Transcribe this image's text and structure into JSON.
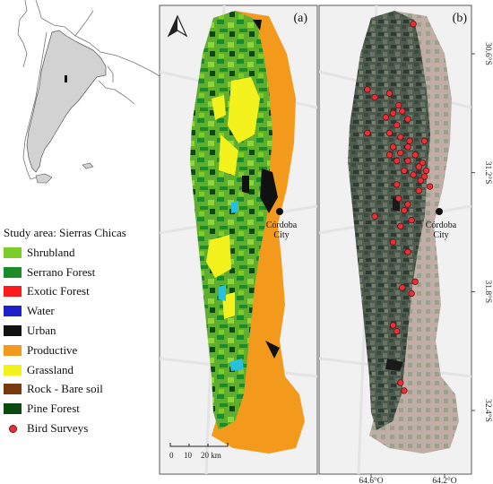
{
  "panels": {
    "a": {
      "label": "(a)"
    },
    "b": {
      "label": "(b)"
    }
  },
  "city": {
    "name": "Córdoba",
    "subname": "City"
  },
  "scale_bar": {
    "ticks": [
      "0",
      "10",
      "20 km"
    ]
  },
  "legend": {
    "title": "Study area: Sierras Chicas",
    "items": [
      {
        "label": "Shrubland",
        "color": "#7ccd2a"
      },
      {
        "label": "Serrano Forest",
        "color": "#1c8c2a"
      },
      {
        "label": "Exotic Forest",
        "color": "#ff1a1a"
      },
      {
        "label": "Water",
        "color": "#2020c8"
      },
      {
        "label": "Urban",
        "color": "#111111"
      },
      {
        "label": "Productive",
        "color": "#f39a1c"
      },
      {
        "label": "Grassland",
        "color": "#f4f21c"
      },
      {
        "label": "Rock - Bare soil",
        "color": "#7a3a10"
      },
      {
        "label": "Pine Forest",
        "color": "#0c4a12"
      },
      {
        "label": "Bird Surveys",
        "color": "#e8303a",
        "marker": "dot"
      }
    ]
  },
  "axes": {
    "latitude_ticks": [
      "30.6°S",
      "31.2°S",
      "31.8°S",
      "32.4°S"
    ],
    "longitude_ticks": [
      "64.6°O",
      "64.2°O"
    ]
  },
  "bird_surveys": [
    [
      -64.37,
      -30.45
    ],
    [
      -64.62,
      -30.78
    ],
    [
      -64.58,
      -30.82
    ],
    [
      -64.5,
      -30.8
    ],
    [
      -64.45,
      -30.86
    ],
    [
      -64.43,
      -30.89
    ],
    [
      -64.48,
      -30.9
    ],
    [
      -64.52,
      -30.92
    ],
    [
      -64.4,
      -30.93
    ],
    [
      -64.46,
      -30.96
    ],
    [
      -64.62,
      -31.0
    ],
    [
      -64.5,
      -31.0
    ],
    [
      -64.44,
      -31.02
    ],
    [
      -64.39,
      -31.04
    ],
    [
      -64.31,
      -31.04
    ],
    [
      -64.48,
      -31.07
    ],
    [
      -64.4,
      -31.07
    ],
    [
      -64.44,
      -31.1
    ],
    [
      -64.5,
      -31.11
    ],
    [
      -64.36,
      -31.11
    ],
    [
      -64.46,
      -31.14
    ],
    [
      -64.4,
      -31.14
    ],
    [
      -64.32,
      -31.15
    ],
    [
      -64.34,
      -31.17
    ],
    [
      -64.3,
      -31.19
    ],
    [
      -64.42,
      -31.19
    ],
    [
      -64.37,
      -31.21
    ],
    [
      -64.31,
      -31.22
    ],
    [
      -64.33,
      -31.24
    ],
    [
      -64.46,
      -31.26
    ],
    [
      -64.28,
      -31.27
    ],
    [
      -64.34,
      -31.29
    ],
    [
      -64.45,
      -31.33
    ],
    [
      -64.4,
      -31.36
    ],
    [
      -64.42,
      -31.39
    ],
    [
      -64.58,
      -31.42
    ],
    [
      -64.38,
      -31.44
    ],
    [
      -64.44,
      -31.47
    ],
    [
      -64.48,
      -31.55
    ],
    [
      -64.4,
      -31.6
    ],
    [
      -64.36,
      -31.75
    ],
    [
      -64.43,
      -31.78
    ],
    [
      -64.38,
      -31.81
    ],
    [
      -64.48,
      -31.97
    ],
    [
      -64.46,
      -32.0
    ],
    [
      -64.44,
      -32.26
    ],
    [
      -64.42,
      -32.3
    ]
  ]
}
